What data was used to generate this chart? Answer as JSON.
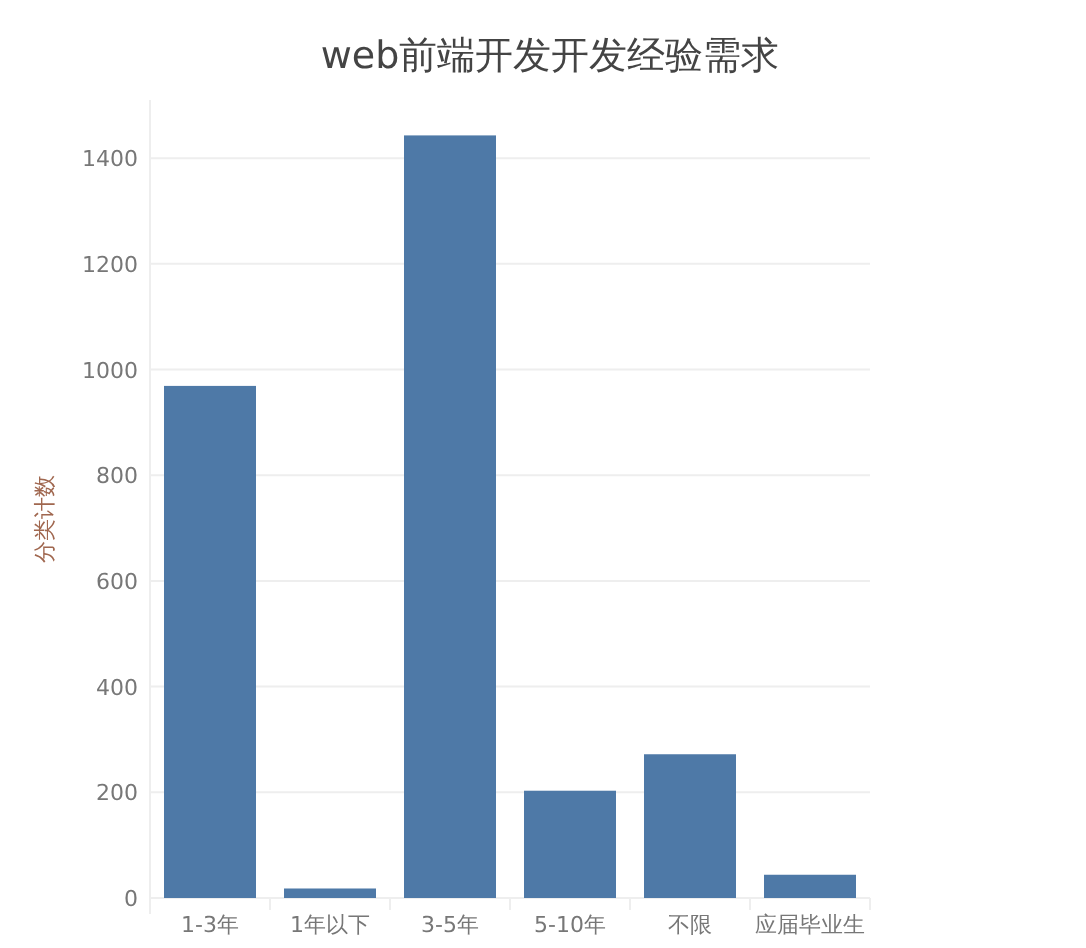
{
  "chart_data": {
    "type": "bar",
    "title": "web前端开发开发经验需求",
    "ylabel": "分类计数",
    "categories": [
      "1-3年",
      "1年以下",
      "3-5年",
      "5-10年",
      "不限",
      "应届毕业生"
    ],
    "values": [
      969,
      18,
      1443,
      203,
      272,
      44
    ],
    "color": "#4e79a7",
    "ylim": [
      0,
      1510
    ],
    "yticks": [
      0,
      200,
      400,
      600,
      800,
      1000,
      1200,
      1400
    ],
    "grid": "y"
  }
}
